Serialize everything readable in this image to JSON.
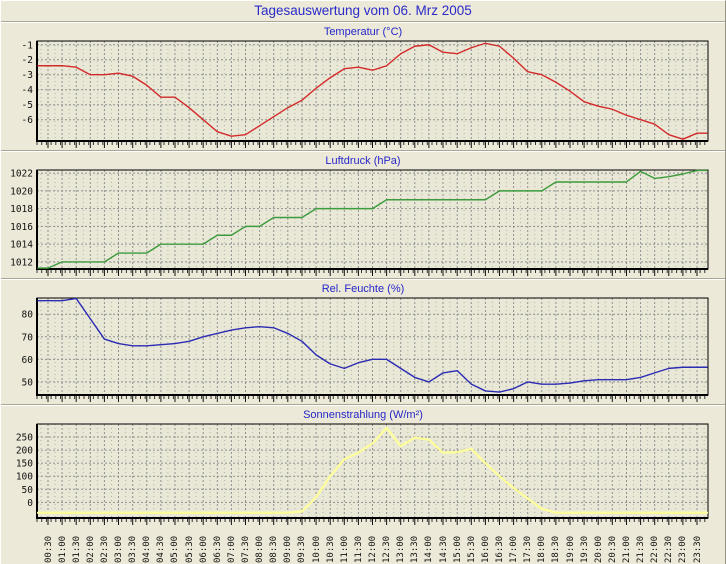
{
  "page": {
    "title": "Tagesauswertung vom 06. Mrz 2005"
  },
  "colors": {
    "page_bg": "#ECE9D8",
    "plot_bg": "#E9E8D7",
    "grid_major": "#8F8F8F",
    "grid_minor": "#B3B3A6",
    "axis": "#000000",
    "title_text": "#2A2AC8"
  },
  "x_axis": {
    "categories": [
      "00:30",
      "01:00",
      "01:30",
      "02:00",
      "02:30",
      "03:00",
      "03:30",
      "04:00",
      "04:30",
      "05:00",
      "05:30",
      "06:00",
      "06:30",
      "07:00",
      "07:30",
      "08:00",
      "08:30",
      "09:00",
      "09:30",
      "10:00",
      "10:30",
      "11:00",
      "11:30",
      "12:00",
      "12:30",
      "13:00",
      "13:30",
      "14:00",
      "14:30",
      "15:00",
      "15:30",
      "16:00",
      "16:30",
      "17:00",
      "17:30",
      "18:00",
      "18:30",
      "19:00",
      "19:30",
      "20:00",
      "20:30",
      "21:00",
      "21:30",
      "22:00",
      "22:30",
      "23:00",
      "23:30"
    ]
  },
  "chart_data": [
    {
      "id": "temperature",
      "type": "line",
      "title": "Temperatur (°C)",
      "color": "#D42A2A",
      "ylim": [
        -7.42,
        -0.75
      ],
      "yticks": [
        -1,
        -2,
        -3,
        -4,
        -5,
        -6
      ],
      "values": [
        -2.4,
        -2.4,
        -2.5,
        -3.0,
        -3.0,
        -2.9,
        -3.1,
        -3.7,
        -4.5,
        -4.5,
        -5.2,
        -6.0,
        -6.8,
        -7.1,
        -7.0,
        -6.4,
        -5.8,
        -5.2,
        -4.7,
        -3.9,
        -3.2,
        -2.6,
        -2.5,
        -2.7,
        -2.4,
        -1.6,
        -1.1,
        -1.0,
        -1.5,
        -1.6,
        -1.2,
        -0.9,
        -1.1,
        -1.9,
        -2.8,
        -3.0,
        -3.5,
        -4.1,
        -4.8,
        -5.1,
        -5.3,
        -5.7,
        -6.0,
        -6.3,
        -7.0,
        -7.3,
        -6.9
      ]
    },
    {
      "id": "pressure",
      "type": "line",
      "title": "Luftdruck (hPa)",
      "color": "#3C9B3C",
      "ylim": [
        1011.2,
        1022.35
      ],
      "yticks": [
        1012,
        1014,
        1016,
        1018,
        1020,
        1022
      ],
      "values": [
        1011.3,
        1012,
        1012,
        1012,
        1012,
        1013,
        1013,
        1013,
        1014,
        1014,
        1014,
        1014,
        1015,
        1015,
        1016,
        1016,
        1017,
        1017,
        1017,
        1018,
        1018,
        1018,
        1018,
        1018,
        1019,
        1019,
        1019,
        1019,
        1019,
        1019,
        1019,
        1019,
        1020,
        1020,
        1020,
        1020,
        1021,
        1021,
        1021,
        1021,
        1021,
        1021,
        1022.2,
        1021.4,
        1021.6,
        1021.9,
        1022.3
      ]
    },
    {
      "id": "humidity",
      "type": "line",
      "title": "Rel. Feuchte (%)",
      "color": "#2B2BB4",
      "ylim": [
        44.2,
        87.2
      ],
      "yticks": [
        50,
        60,
        70,
        80
      ],
      "values": [
        86,
        86,
        87,
        78,
        69,
        67,
        66,
        66,
        66.5,
        67,
        68,
        70,
        71.5,
        73,
        74,
        74.5,
        74,
        71.5,
        68,
        62,
        58,
        56,
        58.5,
        60,
        60,
        56,
        52,
        50,
        54,
        55,
        49,
        46,
        45.5,
        47,
        50,
        49,
        49,
        49.5,
        50.5,
        51,
        51,
        51,
        52,
        54,
        56,
        56.5,
        56.5
      ]
    },
    {
      "id": "solar",
      "type": "line",
      "title": "Sonnenstrahlung (W/m²)",
      "color": "#FFFF99",
      "ylim": [
        -60,
        300
      ],
      "yticks": [
        0,
        50,
        100,
        150,
        200,
        250
      ],
      "values": [
        -40,
        -40,
        -40,
        -40,
        -40,
        -40,
        -40,
        -40,
        -40,
        -40,
        -40,
        -40,
        -40,
        -40,
        -40,
        -40,
        -40,
        -40,
        -35,
        20,
        100,
        165,
        190,
        225,
        285,
        215,
        248,
        240,
        190,
        192,
        205,
        150,
        100,
        55,
        15,
        -25,
        -40,
        -40,
        -40,
        -40,
        -40,
        -40,
        -40,
        -40,
        -40,
        -40,
        -40
      ]
    }
  ]
}
